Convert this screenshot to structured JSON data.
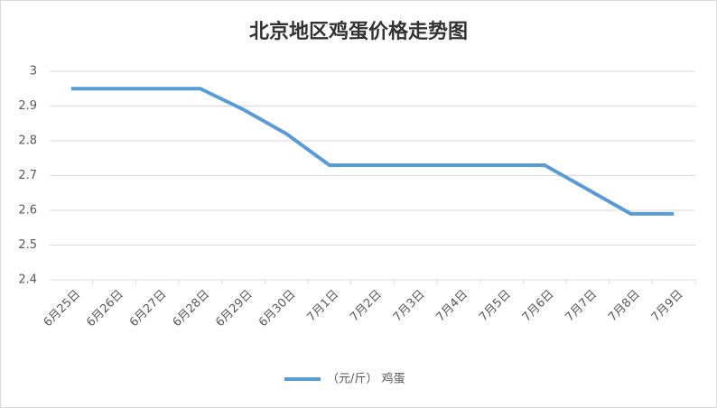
{
  "chart_data": {
    "type": "line",
    "title": "北京地区鸡蛋价格走势图",
    "categories": [
      "6月25日",
      "6月26日",
      "6月27日",
      "6月28日",
      "6月29日",
      "6月30日",
      "7月1日",
      "7月2日",
      "7月3日",
      "7月4日",
      "7月5日",
      "7月6日",
      "7月7日",
      "7月8日",
      "7月9日"
    ],
    "series": [
      {
        "name": "（元/斤） 鸡蛋",
        "color": "#5b9bd5",
        "values": [
          2.95,
          2.95,
          2.95,
          2.95,
          2.89,
          2.82,
          2.73,
          2.73,
          2.73,
          2.73,
          2.73,
          2.73,
          2.66,
          2.59,
          2.59
        ]
      }
    ],
    "ylim": [
      2.4,
      3
    ],
    "yticks": [
      2.4,
      2.5,
      2.6,
      2.7,
      2.8,
      2.9,
      3
    ],
    "grid": true,
    "legend": "bottom"
  }
}
